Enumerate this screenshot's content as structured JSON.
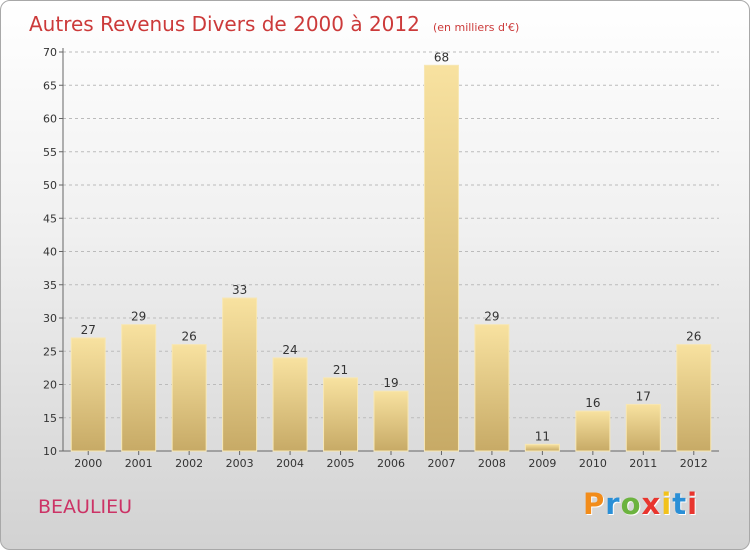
{
  "header": {
    "title": "Autres Revenus Divers de 2000 à 2012",
    "unit": "(en milliers d'€)"
  },
  "footer": {
    "location": "BEAULIEU",
    "brand_letters": [
      "P",
      "r",
      "o",
      "x",
      "i",
      "t",
      "i"
    ],
    "brand_colors": [
      "#f28c1a",
      "#2a8fd6",
      "#6cb33f",
      "#e8352e",
      "#f2c21b",
      "#2a8fd6",
      "#e8352e"
    ]
  },
  "chart_data": {
    "type": "bar",
    "categories": [
      "2000",
      "2001",
      "2002",
      "2003",
      "2004",
      "2005",
      "2006",
      "2007",
      "2008",
      "2009",
      "2010",
      "2011",
      "2012"
    ],
    "values": [
      27,
      29,
      26,
      33,
      24,
      21,
      19,
      68,
      29,
      11,
      16,
      17,
      26
    ],
    "title": "Autres Revenus Divers de 2000 à 2012",
    "ylim": [
      10,
      70
    ],
    "yticks": [
      10,
      15,
      20,
      25,
      30,
      35,
      40,
      45,
      50,
      55,
      60,
      65,
      70
    ],
    "grid": "horizontal dashed",
    "legend": "none",
    "bar_colors": [
      "#f8e2a0",
      "#c7aa66"
    ]
  }
}
